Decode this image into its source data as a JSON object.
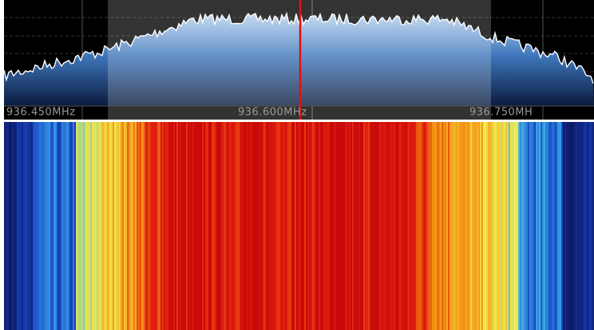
{
  "spectrum": {
    "frequency_labels": [
      "936.450MHz",
      "936.600MHz",
      "936.750MH"
    ]
  }
}
